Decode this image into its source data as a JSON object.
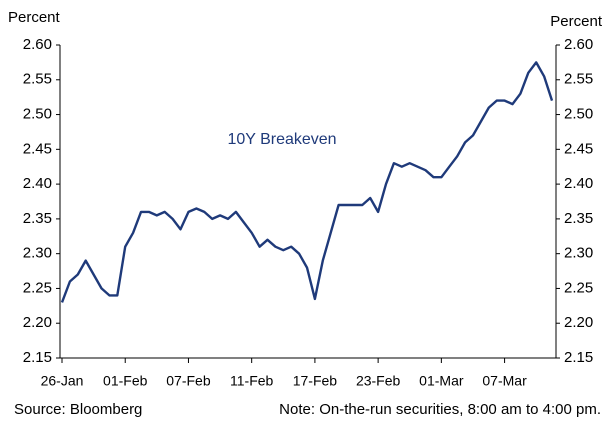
{
  "chart_data": {
    "type": "line",
    "y_label": "Percent",
    "y2_label": "Percent",
    "source": "Source: Bloomberg",
    "note": "Note: On-the-run securities, 8:00 am to 4:00 pm.",
    "categories": [
      "26-Jan",
      null,
      null,
      null,
      null,
      null,
      null,
      null,
      "01-Feb",
      null,
      null,
      null,
      null,
      null,
      null,
      null,
      "07-Feb",
      null,
      null,
      null,
      null,
      null,
      null,
      null,
      "11-Feb",
      null,
      null,
      null,
      null,
      null,
      null,
      null,
      "17-Feb",
      null,
      null,
      null,
      null,
      null,
      null,
      null,
      "23-Feb",
      null,
      null,
      null,
      null,
      null,
      null,
      null,
      "01-Mar",
      null,
      null,
      null,
      null,
      null,
      null,
      null,
      "07-Mar",
      null,
      null,
      null,
      null,
      null,
      null
    ],
    "series": [
      {
        "name": "10Y Breakeven",
        "color": "#1f3a7a",
        "values": [
          2.23,
          2.26,
          2.27,
          2.29,
          2.27,
          2.25,
          2.24,
          2.24,
          2.31,
          2.33,
          2.36,
          2.36,
          2.355,
          2.36,
          2.35,
          2.335,
          2.36,
          2.365,
          2.36,
          2.35,
          2.355,
          2.35,
          2.36,
          2.345,
          2.33,
          2.31,
          2.32,
          2.31,
          2.305,
          2.31,
          2.3,
          2.28,
          2.235,
          2.29,
          2.33,
          2.37,
          2.37,
          2.37,
          2.37,
          2.38,
          2.36,
          2.4,
          2.43,
          2.425,
          2.43,
          2.425,
          2.42,
          2.41,
          2.41,
          2.425,
          2.44,
          2.46,
          2.47,
          2.49,
          2.51,
          2.52,
          2.52,
          2.515,
          2.53,
          2.56,
          2.575,
          2.555,
          2.52
        ]
      }
    ],
    "ylim": [
      2.15,
      2.6
    ],
    "yticks": [
      {
        "value": 2.15,
        "label": "2.15"
      },
      {
        "value": 2.2,
        "label": "2.20"
      },
      {
        "value": 2.25,
        "label": "2.25"
      },
      {
        "value": 2.3,
        "label": "2.30"
      },
      {
        "value": 2.35,
        "label": "2.35"
      },
      {
        "value": 2.4,
        "label": "2.40"
      },
      {
        "value": 2.45,
        "label": "2.45"
      },
      {
        "value": 2.5,
        "label": "2.50"
      },
      {
        "value": 2.55,
        "label": "2.55"
      },
      {
        "value": 2.6,
        "label": "2.60"
      }
    ],
    "y2lim": [
      2.15,
      2.6
    ],
    "y2ticks": [
      {
        "value": 2.15,
        "label": "2.15"
      },
      {
        "value": 2.2,
        "label": "2.20"
      },
      {
        "value": 2.25,
        "label": "2.25"
      },
      {
        "value": 2.3,
        "label": "2.30"
      },
      {
        "value": 2.35,
        "label": "2.35"
      },
      {
        "value": 2.4,
        "label": "2.40"
      },
      {
        "value": 2.45,
        "label": "2.45"
      },
      {
        "value": 2.5,
        "label": "2.50"
      },
      {
        "value": 2.55,
        "label": "2.55"
      },
      {
        "value": 2.6,
        "label": "2.60"
      }
    ],
    "grid": false
  }
}
